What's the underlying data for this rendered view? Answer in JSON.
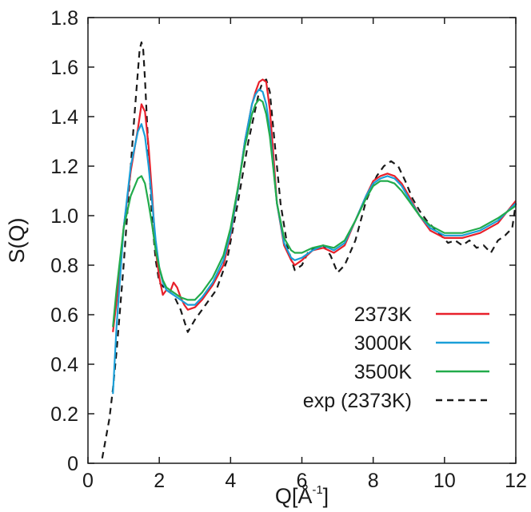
{
  "chart_data": {
    "type": "line",
    "title": "",
    "xlabel": "Q[Å",
    "xlabel_sup": "-1",
    "xlabel_close": "]",
    "ylabel": "S(Q)",
    "xlim": [
      0,
      12
    ],
    "ylim": [
      0,
      1.8
    ],
    "xticks": [
      "0",
      "2",
      "4",
      "6",
      "8",
      "10",
      "12"
    ],
    "yticks": [
      "0",
      "0.2",
      "0.4",
      "0.6",
      "0.8",
      "1.0",
      "1.2",
      "1.4",
      "1.6",
      "1.8"
    ],
    "grid": false,
    "legend_position": "bottom-right",
    "series": [
      {
        "name": "2373K",
        "color": "#e8202a",
        "style": "solid",
        "x": [
          0.7,
          0.8,
          1.0,
          1.2,
          1.4,
          1.5,
          1.6,
          1.7,
          1.8,
          1.9,
          2.0,
          2.1,
          2.2,
          2.3,
          2.4,
          2.5,
          2.6,
          2.7,
          2.8,
          3.0,
          3.2,
          3.5,
          3.8,
          4.0,
          4.2,
          4.4,
          4.6,
          4.7,
          4.8,
          4.9,
          5.0,
          5.1,
          5.2,
          5.3,
          5.5,
          5.7,
          5.8,
          6.0,
          6.3,
          6.6,
          6.9,
          7.2,
          7.5,
          7.8,
          8.0,
          8.2,
          8.4,
          8.6,
          8.8,
          9.0,
          9.3,
          9.6,
          10.0,
          10.5,
          11.0,
          11.5,
          12.0
        ],
        "y": [
          0.53,
          0.65,
          0.95,
          1.18,
          1.35,
          1.45,
          1.42,
          1.28,
          1.08,
          0.86,
          0.75,
          0.68,
          0.7,
          0.69,
          0.73,
          0.71,
          0.67,
          0.64,
          0.62,
          0.63,
          0.66,
          0.72,
          0.8,
          0.92,
          1.1,
          1.3,
          1.45,
          1.5,
          1.54,
          1.55,
          1.54,
          1.43,
          1.25,
          1.05,
          0.88,
          0.82,
          0.8,
          0.82,
          0.86,
          0.87,
          0.85,
          0.88,
          0.98,
          1.08,
          1.14,
          1.16,
          1.17,
          1.16,
          1.13,
          1.08,
          1.0,
          0.94,
          0.91,
          0.91,
          0.93,
          0.97,
          1.06
        ]
      },
      {
        "name": "3000K",
        "color": "#1a9fd8",
        "style": "solid",
        "x": [
          0.7,
          0.8,
          1.0,
          1.2,
          1.4,
          1.5,
          1.6,
          1.7,
          1.8,
          1.9,
          2.0,
          2.1,
          2.2,
          2.4,
          2.6,
          2.8,
          3.0,
          3.2,
          3.5,
          3.8,
          4.0,
          4.2,
          4.4,
          4.6,
          4.7,
          4.8,
          4.9,
          5.0,
          5.1,
          5.2,
          5.3,
          5.5,
          5.7,
          5.8,
          6.0,
          6.3,
          6.6,
          6.9,
          7.2,
          7.5,
          7.8,
          8.0,
          8.2,
          8.4,
          8.6,
          8.8,
          9.0,
          9.3,
          9.6,
          10.0,
          10.5,
          11.0,
          11.5,
          12.0
        ],
        "y": [
          0.28,
          0.55,
          0.95,
          1.2,
          1.34,
          1.37,
          1.32,
          1.2,
          1.05,
          0.9,
          0.79,
          0.73,
          0.7,
          0.68,
          0.66,
          0.64,
          0.64,
          0.67,
          0.73,
          0.82,
          0.93,
          1.1,
          1.3,
          1.45,
          1.49,
          1.51,
          1.5,
          1.45,
          1.35,
          1.2,
          1.05,
          0.89,
          0.83,
          0.82,
          0.83,
          0.86,
          0.88,
          0.86,
          0.89,
          0.98,
          1.08,
          1.13,
          1.15,
          1.16,
          1.15,
          1.12,
          1.07,
          1.0,
          0.95,
          0.92,
          0.92,
          0.94,
          0.98,
          1.05
        ]
      },
      {
        "name": "3500K",
        "color": "#22ab4b",
        "style": "solid",
        "x": [
          0.7,
          0.8,
          1.0,
          1.2,
          1.4,
          1.5,
          1.6,
          1.7,
          1.8,
          1.9,
          2.0,
          2.1,
          2.2,
          2.4,
          2.6,
          2.8,
          3.0,
          3.2,
          3.5,
          3.8,
          4.0,
          4.2,
          4.4,
          4.6,
          4.7,
          4.8,
          4.9,
          5.0,
          5.1,
          5.2,
          5.3,
          5.5,
          5.7,
          5.8,
          6.0,
          6.3,
          6.6,
          6.9,
          7.2,
          7.5,
          7.8,
          8.0,
          8.2,
          8.4,
          8.6,
          8.8,
          9.0,
          9.3,
          9.6,
          10.0,
          10.5,
          11.0,
          11.5,
          12.0
        ],
        "y": [
          0.55,
          0.7,
          0.95,
          1.08,
          1.15,
          1.16,
          1.13,
          1.05,
          0.96,
          0.86,
          0.79,
          0.74,
          0.71,
          0.69,
          0.67,
          0.66,
          0.66,
          0.69,
          0.75,
          0.84,
          0.95,
          1.11,
          1.28,
          1.41,
          1.45,
          1.47,
          1.46,
          1.41,
          1.32,
          1.19,
          1.05,
          0.91,
          0.86,
          0.85,
          0.85,
          0.87,
          0.88,
          0.87,
          0.9,
          0.98,
          1.07,
          1.12,
          1.14,
          1.14,
          1.13,
          1.1,
          1.06,
          1.0,
          0.96,
          0.93,
          0.93,
          0.95,
          0.99,
          1.04
        ]
      },
      {
        "name": "exp (2373K)",
        "color": "#1a1a1a",
        "style": "dashed",
        "x": [
          0.4,
          0.5,
          0.6,
          0.7,
          0.8,
          0.9,
          1.0,
          1.1,
          1.2,
          1.3,
          1.4,
          1.45,
          1.5,
          1.55,
          1.6,
          1.7,
          1.8,
          1.9,
          2.0,
          2.2,
          2.4,
          2.6,
          2.8,
          3.0,
          3.3,
          3.6,
          3.9,
          4.2,
          4.5,
          4.8,
          4.9,
          5.0,
          5.1,
          5.2,
          5.4,
          5.6,
          5.8,
          6.0,
          6.2,
          6.4,
          6.6,
          6.8,
          7.0,
          7.2,
          7.5,
          7.8,
          8.1,
          8.3,
          8.5,
          8.7,
          8.9,
          9.1,
          9.3,
          9.5,
          9.7,
          9.9,
          10.1,
          10.3,
          10.5,
          10.7,
          10.9,
          11.1,
          11.3,
          11.5,
          11.7,
          11.9,
          12.0
        ],
        "y": [
          0.02,
          0.1,
          0.18,
          0.3,
          0.45,
          0.62,
          0.8,
          1.0,
          1.2,
          1.4,
          1.58,
          1.67,
          1.7,
          1.67,
          1.55,
          1.25,
          0.98,
          0.82,
          0.73,
          0.7,
          0.68,
          0.62,
          0.53,
          0.58,
          0.64,
          0.7,
          0.82,
          1.05,
          1.3,
          1.5,
          1.54,
          1.55,
          1.5,
          1.35,
          1.05,
          0.87,
          0.78,
          0.8,
          0.86,
          0.87,
          0.88,
          0.84,
          0.77,
          0.8,
          0.9,
          1.06,
          1.16,
          1.2,
          1.22,
          1.2,
          1.14,
          1.07,
          1.02,
          0.98,
          0.95,
          0.92,
          0.89,
          0.9,
          0.88,
          0.9,
          0.87,
          0.88,
          0.85,
          0.9,
          0.92,
          0.95,
          1.05
        ]
      }
    ]
  }
}
